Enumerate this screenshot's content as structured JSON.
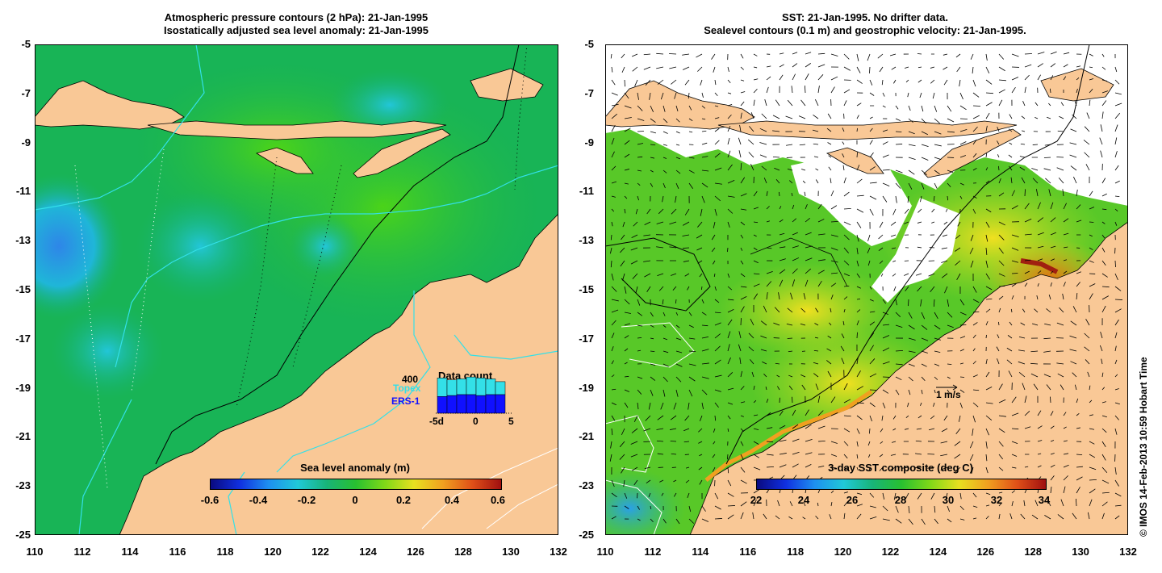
{
  "left_panel": {
    "title_line1": "Atmospheric pressure contours (2 hPa): 21-Jan-1995",
    "title_line2": "Isostatically adjusted sea level anomaly: 21-Jan-1995",
    "colorbar_title": "Sea level anomaly (m)",
    "colorbar_ticks": [
      "-0.6",
      "-0.4",
      "-0.2",
      "0",
      "0.2",
      "0.4",
      "0.6"
    ],
    "inset": {
      "title": "Data count",
      "y_label": "400",
      "series": [
        {
          "name": "Topex",
          "color": "#33e0e8"
        },
        {
          "name": "ERS-1",
          "color": "#1010ff"
        }
      ],
      "x_ticks": [
        "-5d",
        "0",
        "5"
      ],
      "values_topex": [
        380,
        360,
        370,
        390,
        380,
        370,
        340
      ],
      "values_ers": [
        180,
        190,
        200,
        200,
        190,
        200,
        200
      ]
    }
  },
  "right_panel": {
    "title_line1": "SST: 21-Jan-1995. No drifter data.",
    "title_line2": "Sealevel contours (0.1 m) and geostrophic velocity: 21-Jan-1995.",
    "colorbar_title": "3-day SST composite (deg C)",
    "colorbar_ticks": [
      "22",
      "24",
      "26",
      "28",
      "30",
      "32",
      "34"
    ],
    "scale_label": "1 m/s"
  },
  "axes": {
    "y_ticks": [
      "-5",
      "-7",
      "-9",
      "-11",
      "-13",
      "-15",
      "-17",
      "-19",
      "-21",
      "-23",
      "-25"
    ],
    "x_ticks": [
      "110",
      "112",
      "114",
      "116",
      "118",
      "120",
      "122",
      "124",
      "126",
      "128",
      "130",
      "132"
    ],
    "lon_range": [
      110,
      132
    ],
    "lat_range": [
      -25,
      -5
    ]
  },
  "credit": "© IMOS 14-Feb-2013 10:59 Hobart Time",
  "colors": {
    "land": "#f9c896",
    "ocean_green": "#1fb84a",
    "ocean_teal": "#10a86e",
    "anomaly_blue": "#3fa8e6",
    "cyan_contour": "#33e0e8"
  }
}
